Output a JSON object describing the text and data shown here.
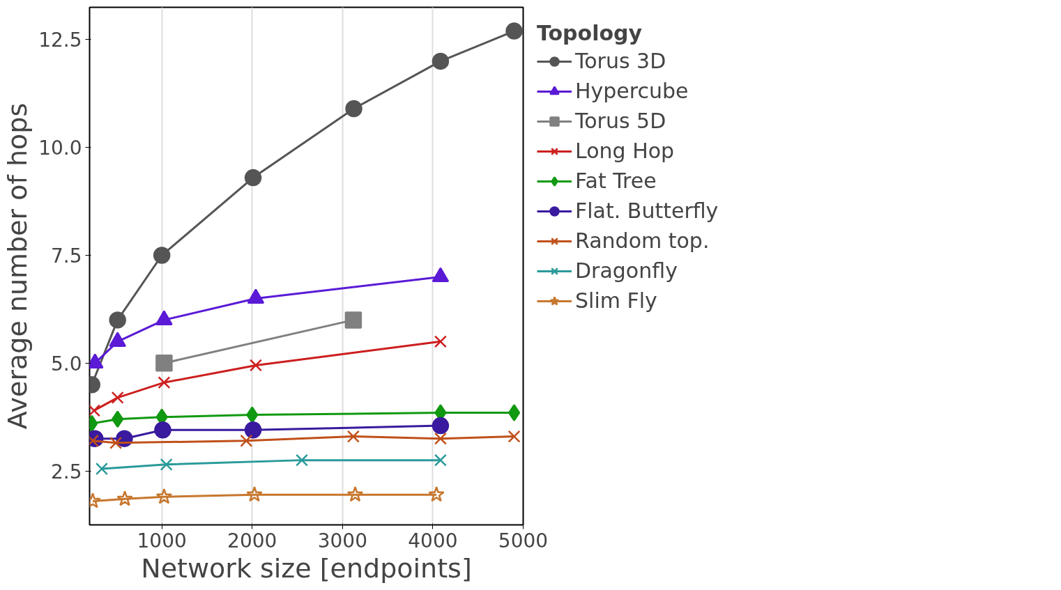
{
  "chart_data": {
    "type": "line",
    "xlabel": "Network size [endpoints]",
    "ylabel": "Average number of hops",
    "legend_title": "Topology",
    "legend": "right",
    "xlim": [
      200,
      5000
    ],
    "xticks": [
      1000,
      2000,
      3000,
      4000,
      5000
    ],
    "ylim": [
      1.25,
      13.25
    ],
    "yticks": [
      {
        "value": 2.5,
        "label": "2.5"
      },
      {
        "value": 5,
        "label": "5.0"
      },
      {
        "value": 7.5,
        "label": "7.5"
      },
      {
        "value": 10,
        "label": "10.0"
      },
      {
        "value": 12.5,
        "label": "12.5"
      }
    ],
    "grid": "x",
    "line_style": "solid",
    "series": [
      {
        "name": "Torus 3D",
        "color": "#555555",
        "marker": "circle",
        "x": [
          225,
          510,
          1000,
          2010,
          3125,
          4085,
          4900
        ],
        "values": [
          4.5,
          6.0,
          7.5,
          9.3,
          10.9,
          12.0,
          12.7
        ]
      },
      {
        "name": "Hypercube",
        "color": "#5a1ad6",
        "marker": "triangle",
        "x": [
          260,
          510,
          1025,
          2040,
          4085
        ],
        "values": [
          5.0,
          5.5,
          6.0,
          6.5,
          7.0
        ]
      },
      {
        "name": "Torus 5D",
        "color": "#808080",
        "marker": "square",
        "x": [
          1025,
          3120
        ],
        "values": [
          5.0,
          6.0
        ]
      },
      {
        "name": "Long Hop",
        "color": "#cc1f1f",
        "marker": "cross",
        "x": [
          250,
          510,
          1025,
          2040,
          4085
        ],
        "values": [
          3.9,
          4.2,
          4.55,
          4.95,
          5.5
        ]
      },
      {
        "name": "Fat Tree",
        "color": "#119911",
        "marker": "diamond",
        "x": [
          225,
          510,
          1000,
          2000,
          4085,
          4900
        ],
        "values": [
          3.6,
          3.7,
          3.75,
          3.8,
          3.85,
          3.85
        ]
      },
      {
        "name": "Flat. Butterfly",
        "color": "#3a1a9e",
        "marker": "circle",
        "x": [
          260,
          585,
          1010,
          2010,
          4085
        ],
        "values": [
          3.25,
          3.25,
          3.45,
          3.45,
          3.55
        ]
      },
      {
        "name": "Random top.",
        "color": "#c0501a",
        "marker": "cross",
        "x": [
          235,
          490,
          1935,
          3120,
          4085,
          4900
        ],
        "values": [
          3.2,
          3.15,
          3.2,
          3.3,
          3.25,
          3.3
        ]
      },
      {
        "name": "Dragonfly",
        "color": "#2a9a9a",
        "marker": "cross",
        "x": [
          335,
          1050,
          2550,
          4085
        ],
        "values": [
          2.55,
          2.65,
          2.75,
          2.75
        ]
      },
      {
        "name": "Slim Fly",
        "color": "#c7772e",
        "marker": "star",
        "x": [
          235,
          590,
          1025,
          2025,
          3140,
          4040
        ],
        "values": [
          1.8,
          1.85,
          1.9,
          1.95,
          1.95,
          1.95
        ]
      }
    ]
  }
}
